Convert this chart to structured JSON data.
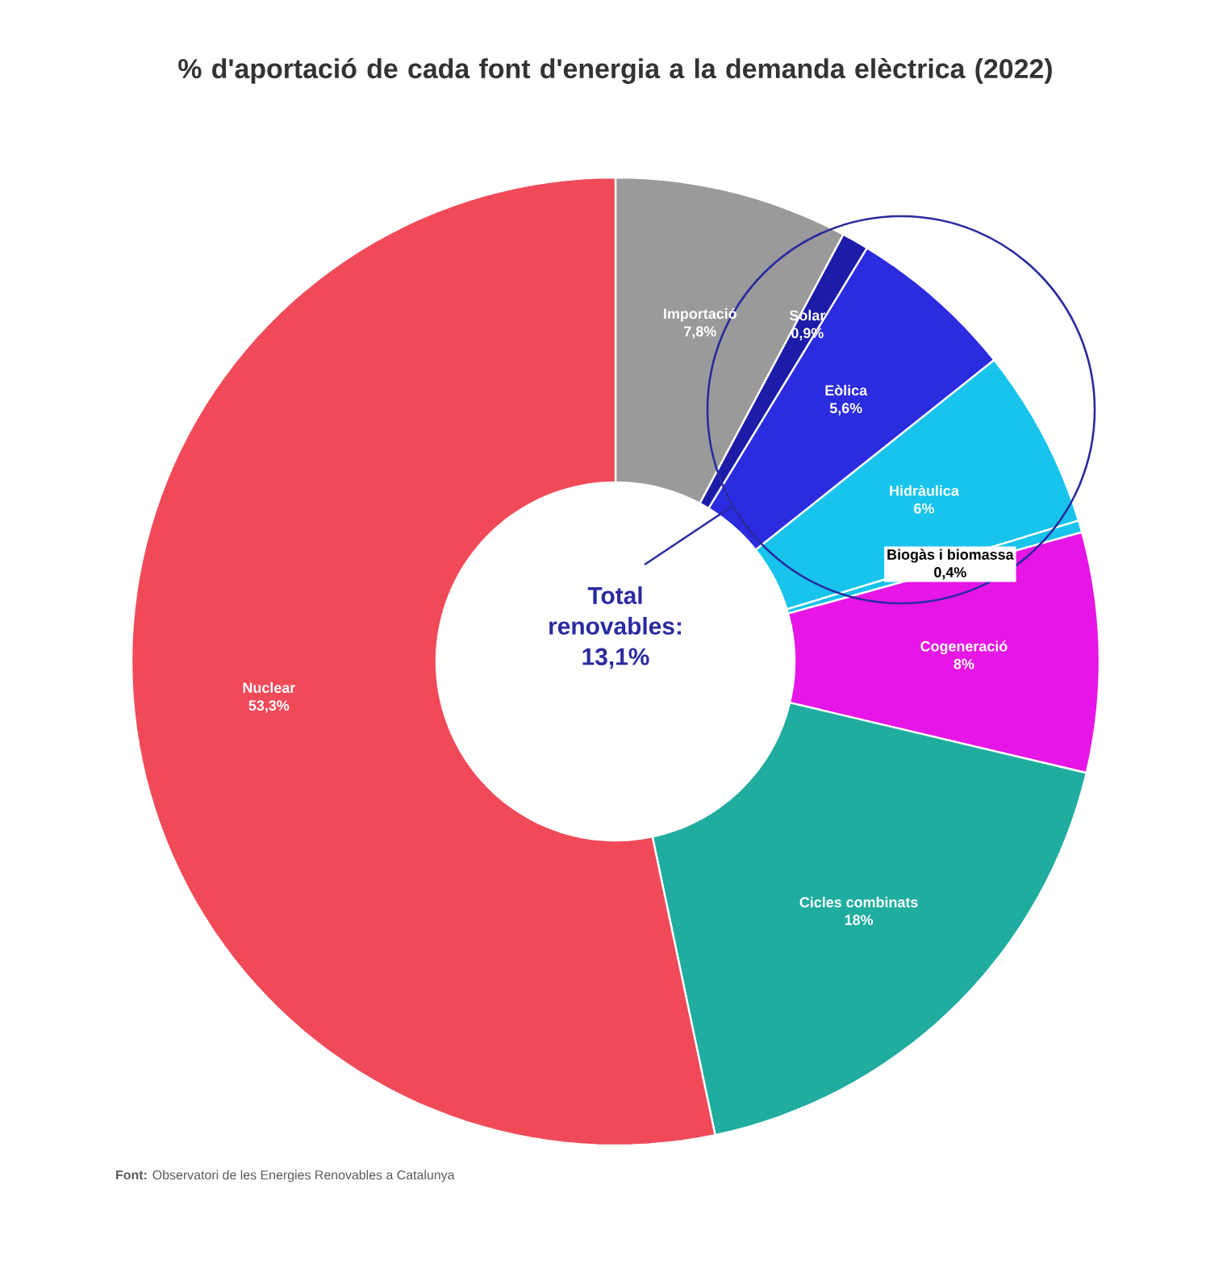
{
  "chart_data": {
    "type": "donut",
    "title": "% d'aportació de cada font d'energia a la demanda elèctrica (2022)",
    "categories": [
      "Importació",
      "Solar",
      "Eòlica",
      "Hidràulica",
      "Biogàs i biomassa",
      "Cogeneració",
      "Cicles combinats",
      "Nuclear"
    ],
    "values": [
      7.8,
      0.9,
      5.6,
      6,
      0.4,
      8,
      18,
      53.3
    ],
    "value_labels": [
      "7,8%",
      "0,9%",
      "5,6%",
      "6%",
      "0,4%",
      "8%",
      "18%",
      "53,3%"
    ],
    "colors": [
      "#9a9a9a",
      "#1c1ca8",
      "#2b2be0",
      "#18c4ec",
      "#18c4ec",
      "#e616e6",
      "#20ada0",
      "#f04a59"
    ],
    "annotations": [
      "Total renovables: 13,1%",
      "**Font:** Observatori de les Energies Renovables a Catalunya"
    ]
  }
}
